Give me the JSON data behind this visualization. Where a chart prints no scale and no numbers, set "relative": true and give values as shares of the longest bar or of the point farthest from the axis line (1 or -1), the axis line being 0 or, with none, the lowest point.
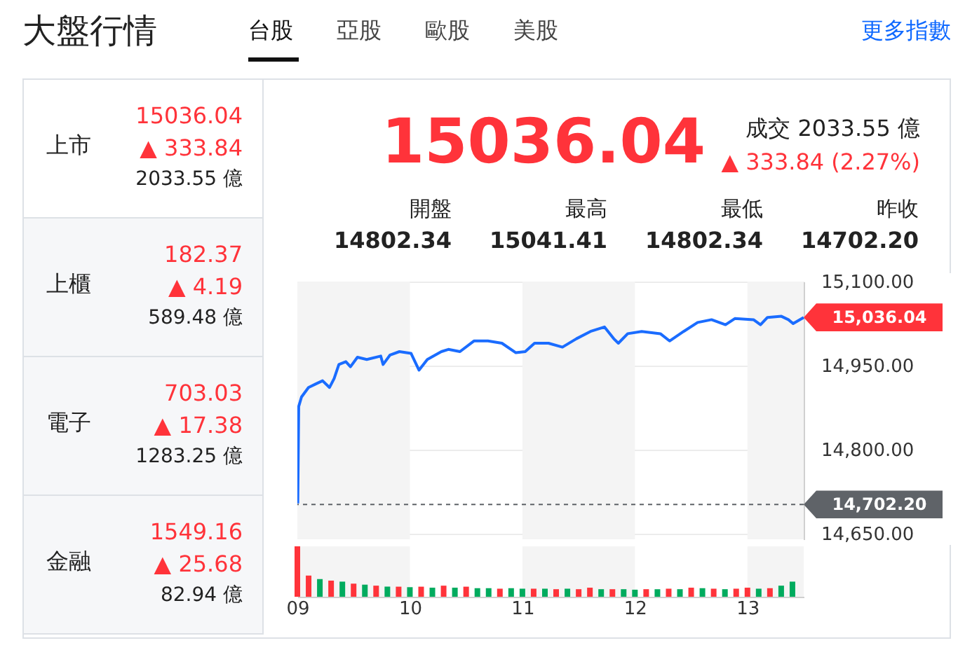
{
  "chart_data": [
    {
      "type": "other",
      "title": "大盤行情",
      "annotations": [
        "台股",
        "亞股",
        "歐股",
        "美股",
        "更多指數"
      ]
    },
    {
      "type": "other",
      "annotations": [
        "上市",
        "15036.04",
        "▲ 333.84",
        "2033.55 億",
        "上櫃",
        "182.37",
        "▲ 4.19",
        "589.48 億",
        "電子",
        "703.03",
        "▲ 17.38",
        "1283.25 億",
        "金融",
        "1549.16",
        "▲ 25.68",
        "82.94 億"
      ]
    },
    {
      "type": "other",
      "title": "15036.04",
      "annotations": [
        "成交 2033.55 億",
        "▲ 333.84 (2.27%)",
        "開盤",
        "14802.34",
        "最高",
        "15041.41",
        "最低",
        "14802.34",
        "昨收",
        "14702.20"
      ]
    },
    {
      "type": "line",
      "xlim": [
        9,
        13.5
      ],
      "ylim": [
        14640,
        15100
      ],
      "yticks": [
        {
          "value": 14650,
          "label": "14,650.00"
        },
        {
          "value": 14800,
          "label": "14,800.00"
        },
        {
          "value": 14950,
          "label": "14,950.00"
        },
        {
          "value": 15100,
          "label": "15,100.00"
        }
      ],
      "grid": "y",
      "tick_labels": "y",
      "x": [
        9.004,
        9.012,
        9.037,
        9.099,
        9.161,
        9.224,
        9.286,
        9.327,
        9.369,
        9.431,
        9.472,
        9.534,
        9.617,
        9.741,
        9.762,
        9.824,
        9.907,
        10.01,
        10.081,
        10.155,
        10.28,
        10.342,
        10.445,
        10.569,
        10.694,
        10.818,
        10.942,
        11.025,
        11.108,
        11.232,
        11.356,
        11.48,
        11.605,
        11.729,
        11.812,
        11.853,
        11.936,
        12.06,
        12.226,
        12.308,
        12.433,
        12.557,
        12.681,
        12.805,
        12.888,
        13.054,
        13.116,
        13.178,
        13.302,
        13.364,
        13.406,
        13.5
      ],
      "series": [
        {
          "color": "#1a6cff",
          "values": [
            14704,
            14877,
            14894,
            14911,
            14917,
            14923,
            14911,
            14927,
            14952,
            14957,
            14948,
            14965,
            14961,
            14967,
            14952,
            14969,
            14975,
            14972,
            14942,
            14961,
            14975,
            14979,
            14975,
            14994,
            14994,
            14990,
            14973,
            14975,
            14990,
            14990,
            14983,
            14998,
            15011,
            15019,
            14998,
            14990,
            15007,
            15011,
            15007,
            14994,
            15011,
            15027,
            15032,
            15023,
            15034,
            15032,
            15023,
            15036,
            15038,
            15032,
            15025,
            15036.04
          ]
        }
      ],
      "bands": [
        {
          "axis": "x",
          "from": 9,
          "to": 10,
          "color": "#f4f4f4"
        },
        {
          "axis": "x",
          "from": 11,
          "to": 12,
          "color": "#f4f4f4"
        },
        {
          "axis": "x",
          "from": 13,
          "to": 13.5,
          "color": "#f4f4f4"
        }
      ],
      "ref_lines": [
        {
          "axis": "y",
          "value": 14702.2,
          "label": "14,702.20",
          "color": "#5f6368",
          "line_style": "dashed"
        }
      ],
      "annotations": [
        {
          "text": "15,036.04",
          "x": 13.5,
          "y": 15036.04
        }
      ]
    },
    {
      "type": "bar",
      "relative": true,
      "xlim": [
        9,
        13.5
      ],
      "xticks": [
        {
          "value": 9,
          "label": "09"
        },
        {
          "value": 10,
          "label": "10"
        },
        {
          "value": 11,
          "label": "11"
        },
        {
          "value": 12,
          "label": "12"
        },
        {
          "value": 13,
          "label": "13"
        }
      ],
      "tick_labels": "x",
      "x": [
        9.0,
        9.1,
        9.2,
        9.3,
        9.4,
        9.5,
        9.6,
        9.7,
        9.8,
        9.9,
        10.0,
        10.1,
        10.2,
        10.3,
        10.4,
        10.5,
        10.6,
        10.7,
        10.8,
        10.9,
        11.0,
        11.1,
        11.2,
        11.3,
        11.4,
        11.5,
        11.6,
        11.7,
        11.8,
        11.9,
        12.0,
        12.1,
        12.2,
        12.3,
        12.4,
        12.5,
        12.6,
        12.7,
        12.8,
        12.9,
        13.0,
        13.1,
        13.2,
        13.3,
        13.4
      ],
      "values": [
        1.0,
        0.42,
        0.35,
        0.32,
        0.3,
        0.26,
        0.24,
        0.22,
        0.2,
        0.2,
        0.19,
        0.2,
        0.18,
        0.22,
        0.18,
        0.2,
        0.17,
        0.17,
        0.16,
        0.17,
        0.16,
        0.16,
        0.16,
        0.15,
        0.16,
        0.15,
        0.18,
        0.15,
        0.15,
        0.15,
        0.14,
        0.15,
        0.15,
        0.16,
        0.15,
        0.18,
        0.17,
        0.16,
        0.15,
        0.16,
        0.18,
        0.16,
        0.17,
        0.22,
        0.3
      ],
      "colors": [
        "#ff333a",
        "#ff333a",
        "#00ab5e",
        "#ff333a",
        "#00ab5e",
        "#ff333a",
        "#00ab5e",
        "#ff333a",
        "#00ab5e",
        "#ff333a",
        "#00ab5e",
        "#ff333a",
        "#00ab5e",
        "#ff333a",
        "#00ab5e",
        "#ff333a",
        "#00ab5e",
        "#00ab5e",
        "#ff333a",
        "#00ab5e",
        "#00ab5e",
        "#ff333a",
        "#00ab5e",
        "#ff333a",
        "#00ab5e",
        "#ff333a",
        "#ff333a",
        "#00ab5e",
        "#ff333a",
        "#00ab5e",
        "#00ab5e",
        "#ff333a",
        "#00ab5e",
        "#ff333a",
        "#00ab5e",
        "#ff333a",
        "#00ab5e",
        "#ff333a",
        "#00ab5e",
        "#ff333a",
        "#ff333a",
        "#00ab5e",
        "#ff333a",
        "#00ab5e",
        "#00ab5e"
      ],
      "bands": [
        {
          "axis": "x",
          "from": 9,
          "to": 10,
          "color": "#f4f4f4"
        },
        {
          "axis": "x",
          "from": 11,
          "to": 12,
          "color": "#f4f4f4"
        },
        {
          "axis": "x",
          "from": 13,
          "to": 13.5,
          "color": "#f4f4f4"
        }
      ]
    }
  ]
}
